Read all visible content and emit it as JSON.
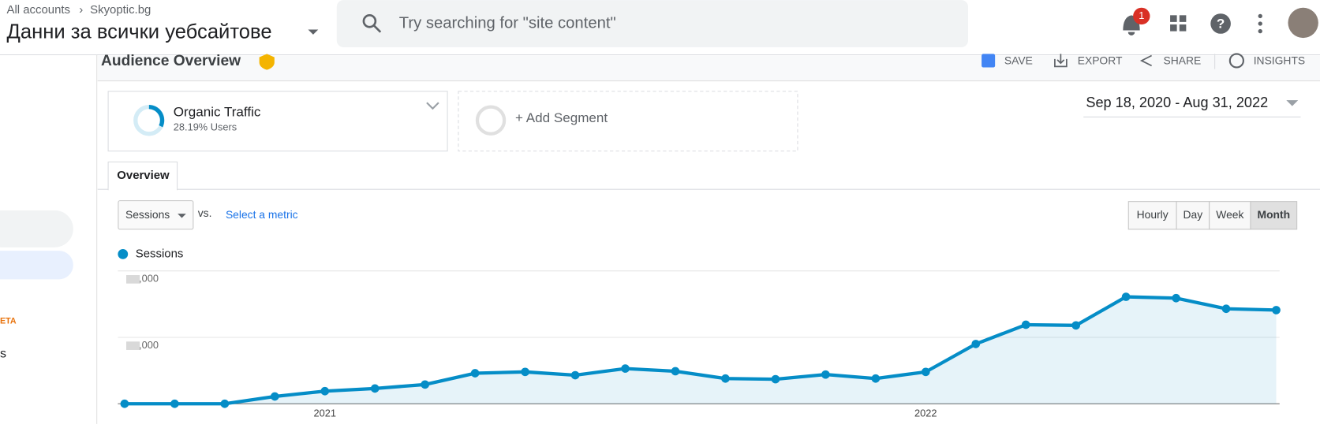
{
  "header": {
    "breadcrumb": [
      "All accounts",
      "Skyoptic.bg"
    ],
    "view": "Данни за всички уебсайтове",
    "search_placeholder": "Try searching for \"site content\"",
    "notifications": "1"
  },
  "sidebar": {
    "section": "ETA",
    "item": "s"
  },
  "toolbar": {
    "title": "Audience Overview",
    "actions": [
      "SAVE",
      "EXPORT",
      "SHARE",
      "INSIGHTS"
    ]
  },
  "segments": {
    "name": "Organic Traffic",
    "detail": "28.19% Users",
    "add": "+ Add Segment"
  },
  "date_range": "Sep 18, 2020 - Aug 31, 2022",
  "tab": "Overview",
  "controls": {
    "metric": "Sessions",
    "vs": "vs.",
    "select": "Select a metric",
    "granularity": [
      "Hourly",
      "Day",
      "Week",
      "Month"
    ],
    "selected": "Month"
  },
  "chart_data": {
    "type": "line",
    "categories": [
      null,
      null,
      null,
      null,
      "2021",
      null,
      null,
      null,
      null,
      null,
      null,
      null,
      null,
      null,
      null,
      null,
      "2022",
      null,
      null,
      null,
      null,
      null,
      null,
      null
    ],
    "series": [
      {
        "name": "Sessions",
        "color": "#058dc7",
        "values": [
          0,
          0,
          0,
          0.11,
          0.19,
          0.23,
          0.29,
          0.46,
          0.48,
          0.43,
          0.53,
          0.49,
          0.38,
          0.37,
          0.44,
          0.38,
          0.48,
          0.9,
          1.19,
          1.18,
          1.61,
          1.59,
          1.43,
          1.41
        ]
      }
    ],
    "ylim": [
      0,
      2
    ],
    "yticks": [
      {
        "value": 0,
        "label": ""
      },
      {
        "value": 1,
        "label": ",000"
      },
      {
        "value": 2,
        "label": ",000"
      }
    ],
    "grid": true,
    "area": true
  }
}
